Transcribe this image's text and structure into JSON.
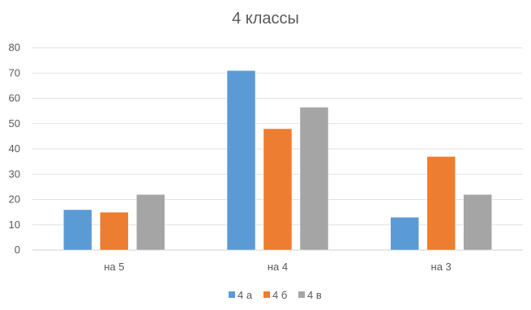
{
  "chart_data": {
    "type": "bar",
    "title": "4 классы",
    "categories": [
      "на 5",
      "на 4",
      "на 3"
    ],
    "series": [
      {
        "name": "4 а",
        "values": [
          16,
          71,
          13
        ],
        "color": "#5B9BD5"
      },
      {
        "name": "4 б",
        "values": [
          15,
          48,
          37
        ],
        "color": "#ED7D31"
      },
      {
        "name": "4 в",
        "values": [
          22,
          56.5,
          22
        ],
        "color": "#A5A5A5"
      }
    ],
    "ylim": [
      0,
      80
    ],
    "yticks": [
      0,
      10,
      20,
      30,
      40,
      50,
      60,
      70,
      80
    ],
    "grid": true,
    "legend": "bottom"
  }
}
